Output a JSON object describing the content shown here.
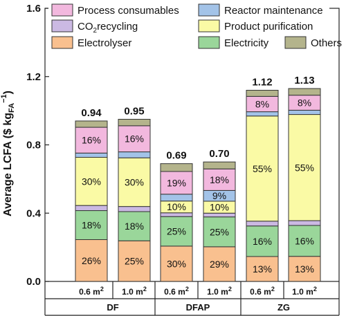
{
  "chart_data": {
    "type": "stacked-bar",
    "ylabel": "Average LCFA ($ kg",
    "ylabel_sub": "FA",
    "ylabel_sup": "−1",
    "ylabel_close": ")",
    "ylim": [
      0,
      1.6
    ],
    "yticks": [
      "0.0",
      "0.4",
      "0.8",
      "1.2",
      "1.6"
    ],
    "legend_position": "top-inside",
    "groups": [
      "DF",
      "DFAP",
      "ZG"
    ],
    "bars": [
      {
        "group": "DF",
        "area": "0.6 m",
        "area_sup": "2",
        "total": "0.94"
      },
      {
        "group": "DF",
        "area": "1.0 m",
        "area_sup": "2",
        "total": "0.95"
      },
      {
        "group": "DFAP",
        "area": "0.6 m",
        "area_sup": "2",
        "total": "0.69"
      },
      {
        "group": "DFAP",
        "area": "1.0 m",
        "area_sup": "2",
        "total": "0.70"
      },
      {
        "group": "ZG",
        "area": "0.6 m",
        "area_sup": "2",
        "total": "1.12"
      },
      {
        "group": "ZG",
        "area": "1.0 m",
        "area_sup": "2",
        "total": "1.13"
      }
    ],
    "series": [
      {
        "name": "Electrolyser",
        "color": "#f9c08f",
        "values": [
          0.245,
          0.238,
          0.207,
          0.203,
          0.146,
          0.147
        ],
        "labels": [
          "26%",
          "25%",
          "30%",
          "29%",
          "13%",
          "13%"
        ]
      },
      {
        "name": "Electricity",
        "color": "#9ad69a",
        "values": [
          0.17,
          0.171,
          0.173,
          0.175,
          0.179,
          0.181
        ],
        "labels": [
          "18%",
          "18%",
          "25%",
          "25%",
          "16%",
          "16%"
        ]
      },
      {
        "name": "CO2recycling",
        "color": "#cbb9e3",
        "values": [
          0.03,
          0.03,
          0.022,
          0.022,
          0.028,
          0.028
        ],
        "labels": [
          "",
          "",
          "",
          "",
          "",
          ""
        ]
      },
      {
        "name": "Product purification",
        "color": "#fafaa5",
        "values": [
          0.282,
          0.285,
          0.069,
          0.07,
          0.616,
          0.622
        ],
        "labels": [
          "30%",
          "30%",
          "10%",
          "10%",
          "55%",
          "55%"
        ]
      },
      {
        "name": "Reactor maintenance",
        "color": "#a3c3e8",
        "values": [
          0.025,
          0.035,
          0.04,
          0.063,
          0.025,
          0.025
        ],
        "labels": [
          "",
          "",
          "",
          "9%",
          "",
          ""
        ]
      },
      {
        "name": "Process consumables",
        "color": "#f2b8de",
        "values": [
          0.151,
          0.153,
          0.133,
          0.126,
          0.09,
          0.088
        ],
        "labels": [
          "16%",
          "16%",
          "19%",
          "18%",
          "8%",
          "8%"
        ]
      },
      {
        "name": "Others",
        "color": "#b4b48c",
        "values": [
          0.037,
          0.038,
          0.046,
          0.041,
          0.036,
          0.039
        ],
        "labels": [
          "",
          "",
          "",
          "",
          "",
          ""
        ]
      }
    ],
    "legend": [
      {
        "name": "Process consumables",
        "color": "#f2b8de"
      },
      {
        "name": "Reactor maintenance",
        "color": "#a3c3e8"
      },
      {
        "name": "CO",
        "sub": "2",
        "tail": "recycling",
        "color": "#cbb9e3"
      },
      {
        "name": "Product purification",
        "color": "#fafaa5"
      },
      {
        "name": "Electrolyser",
        "color": "#f9c08f"
      },
      {
        "name": "Electricity",
        "color": "#9ad69a"
      },
      {
        "name": "Others",
        "color": "#b4b48c"
      }
    ]
  }
}
